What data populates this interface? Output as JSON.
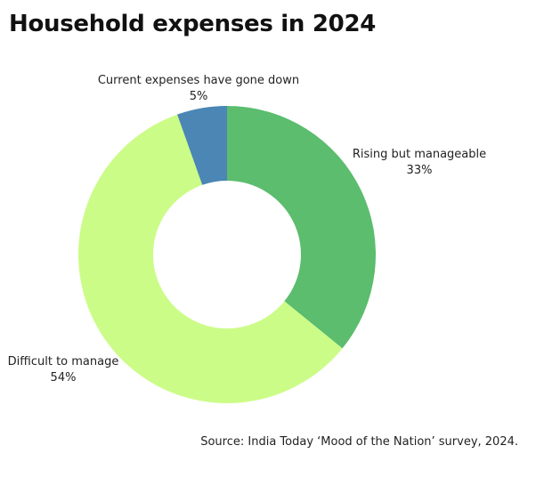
{
  "title": "Household expenses in 2024",
  "source": "Source: India Today ‘Mood of the Nation’ survey, 2024.",
  "chart_data": {
    "type": "pie",
    "donut": true,
    "title": "Household expenses in 2024",
    "categories": [
      "Rising but manageable",
      "Difficult to manage",
      "Current expenses have gone down"
    ],
    "values": [
      33,
      54,
      5
    ],
    "value_labels": [
      "33%",
      "54%",
      "5%"
    ],
    "colors": [
      "#5bbd6d",
      "#ccfc88",
      "#4b86b4"
    ],
    "start": "12 o'clock",
    "direction": "clockwise",
    "legend": "none",
    "data_labels": "outside"
  }
}
